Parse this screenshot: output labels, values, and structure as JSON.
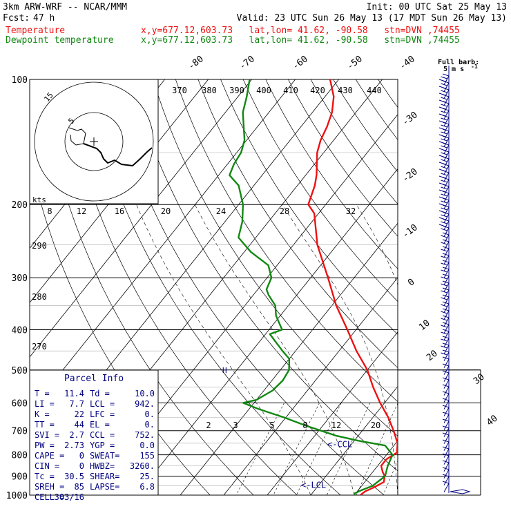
{
  "header": {
    "model": "3km ARW-WRF -- NCAR/MMM",
    "init": "Init: 00 UTC Sat 25 May 13",
    "fcst_label": "Fcst:",
    "fcst_value": "47 h",
    "valid": "Valid: 23 UTC Sun 26 May 13 (17 MDT Sun 26 May 13)",
    "temp_label": "Temperature",
    "dew_label": "Dewpoint temperature",
    "location": "x,y=677.12,603.73   lat,lon= 41.62, -90.58   stn=DVN ,74455"
  },
  "colors": {
    "temperature": "#ee1111",
    "dewpoint": "#118811",
    "annot": "#000080",
    "hodo_barbs": "#000080"
  },
  "pressure_levels": [
    "100",
    "200",
    "300",
    "400",
    "500",
    "600",
    "700",
    "800",
    "900",
    "1000"
  ],
  "isotherm_labels": [
    "-80",
    "-70",
    "-60",
    "-50",
    "-40",
    "-30",
    "-20",
    "-10",
    "0",
    "10",
    "20",
    "30",
    "40"
  ],
  "theta_labels": [
    "370",
    "380",
    "390",
    "400",
    "410",
    "420",
    "430",
    "440"
  ],
  "theta_left_labels": [
    "290",
    "280",
    "270"
  ],
  "mixing_ratio_upper": [
    "8",
    "12",
    "16",
    "20",
    "24",
    "28",
    "32"
  ],
  "mixing_ratio_lower": [
    "2",
    "3",
    "5",
    "8",
    "12",
    "20"
  ],
  "hodograph": {
    "units": "kts",
    "rings": [
      "5",
      "15"
    ]
  },
  "barb_legend": {
    "line1": "Full barb:",
    "line2": "5 m s",
    "exp": "-1"
  },
  "parcel_info": {
    "title": "Parcel Info",
    "rows": [
      [
        "T  =",
        "11.4",
        "Td =",
        "10.0"
      ],
      [
        "LI =",
        "7.7",
        "LCL =",
        "942."
      ],
      [
        "K  =",
        "22",
        "LFC =",
        "0."
      ],
      [
        "TT =",
        "44",
        "EL  =",
        "0."
      ],
      [
        "SVI =",
        "2.7",
        "CCL =",
        "752."
      ],
      [
        "PW =",
        "2.73",
        "YGP =",
        "0.0"
      ],
      [
        "CAPE =",
        "0",
        "SWEAT=",
        "155"
      ],
      [
        "CIN =",
        "0",
        "HWBZ=",
        "3260."
      ],
      [
        "Tc =",
        "30.5",
        "SHEAR=",
        "25."
      ],
      [
        "SREH =",
        "85",
        "LAPSE=",
        "6.8"
      ],
      [
        "CELL =",
        "303/16",
        "",
        ""
      ]
    ]
  },
  "level_markers": {
    "ccl": "<-CCL",
    "lcl": "<-LCL",
    "freezing": "H"
  },
  "chart_data": {
    "type": "line",
    "y_axis": "pressure (hPa), log scale",
    "ylim": [
      1000,
      100
    ],
    "xlim_at_1000": [
      -30,
      50
    ],
    "skew": true,
    "series": [
      {
        "name": "Temperature",
        "points": [
          [
            1000,
            11.4
          ],
          [
            980,
            11.8
          ],
          [
            960,
            13.0
          ],
          [
            930,
            14.4
          ],
          [
            900,
            13.5
          ],
          [
            880,
            12.3
          ],
          [
            850,
            10.8
          ],
          [
            820,
            10.8
          ],
          [
            790,
            12.0
          ],
          [
            750,
            10.4
          ],
          [
            700,
            7.2
          ],
          [
            650,
            3.5
          ],
          [
            600,
            -1.0
          ],
          [
            550,
            -5.5
          ],
          [
            500,
            -10.0
          ],
          [
            450,
            -16.0
          ],
          [
            400,
            -22.0
          ],
          [
            350,
            -29.0
          ],
          [
            300,
            -36.0
          ],
          [
            250,
            -44.5
          ],
          [
            210,
            -51.0
          ],
          [
            200,
            -54.0
          ],
          [
            180,
            -56.0
          ],
          [
            170,
            -57.5
          ],
          [
            150,
            -61.5
          ],
          [
            140,
            -63.0
          ],
          [
            130,
            -64.0
          ],
          [
            120,
            -65.5
          ],
          [
            110,
            -68.0
          ],
          [
            100,
            -72.0
          ]
        ]
      },
      {
        "name": "Dewpoint temperature",
        "points": [
          [
            1000,
            10.0
          ],
          [
            990,
            9.8
          ],
          [
            975,
            10.6
          ],
          [
            950,
            12.5
          ],
          [
            900,
            13.6
          ],
          [
            850,
            12.3
          ],
          [
            800,
            11.4
          ],
          [
            760,
            8.0
          ],
          [
            740,
            1.0
          ],
          [
            720,
            -5.0
          ],
          [
            700,
            -9.5
          ],
          [
            680,
            -14.0
          ],
          [
            650,
            -20.5
          ],
          [
            620,
            -28.0
          ],
          [
            600,
            -32.5
          ],
          [
            590,
            -30.0
          ],
          [
            560,
            -28.0
          ],
          [
            530,
            -27.5
          ],
          [
            500,
            -28.0
          ],
          [
            470,
            -30.0
          ],
          [
            450,
            -33.0
          ],
          [
            410,
            -39.0
          ],
          [
            400,
            -37.0
          ],
          [
            370,
            -41.0
          ],
          [
            350,
            -43.0
          ],
          [
            330,
            -46.5
          ],
          [
            320,
            -48.0
          ],
          [
            300,
            -49.0
          ],
          [
            280,
            -52.0
          ],
          [
            260,
            -58.5
          ],
          [
            240,
            -64.0
          ],
          [
            220,
            -66.0
          ],
          [
            200,
            -69.0
          ],
          [
            180,
            -73.5
          ],
          [
            170,
            -77.5
          ],
          [
            160,
            -78.5
          ],
          [
            150,
            -79.0
          ],
          [
            140,
            -80.5
          ],
          [
            120,
            -86.0
          ],
          [
            110,
            -88.0
          ],
          [
            100,
            -90.5
          ]
        ]
      }
    ]
  }
}
